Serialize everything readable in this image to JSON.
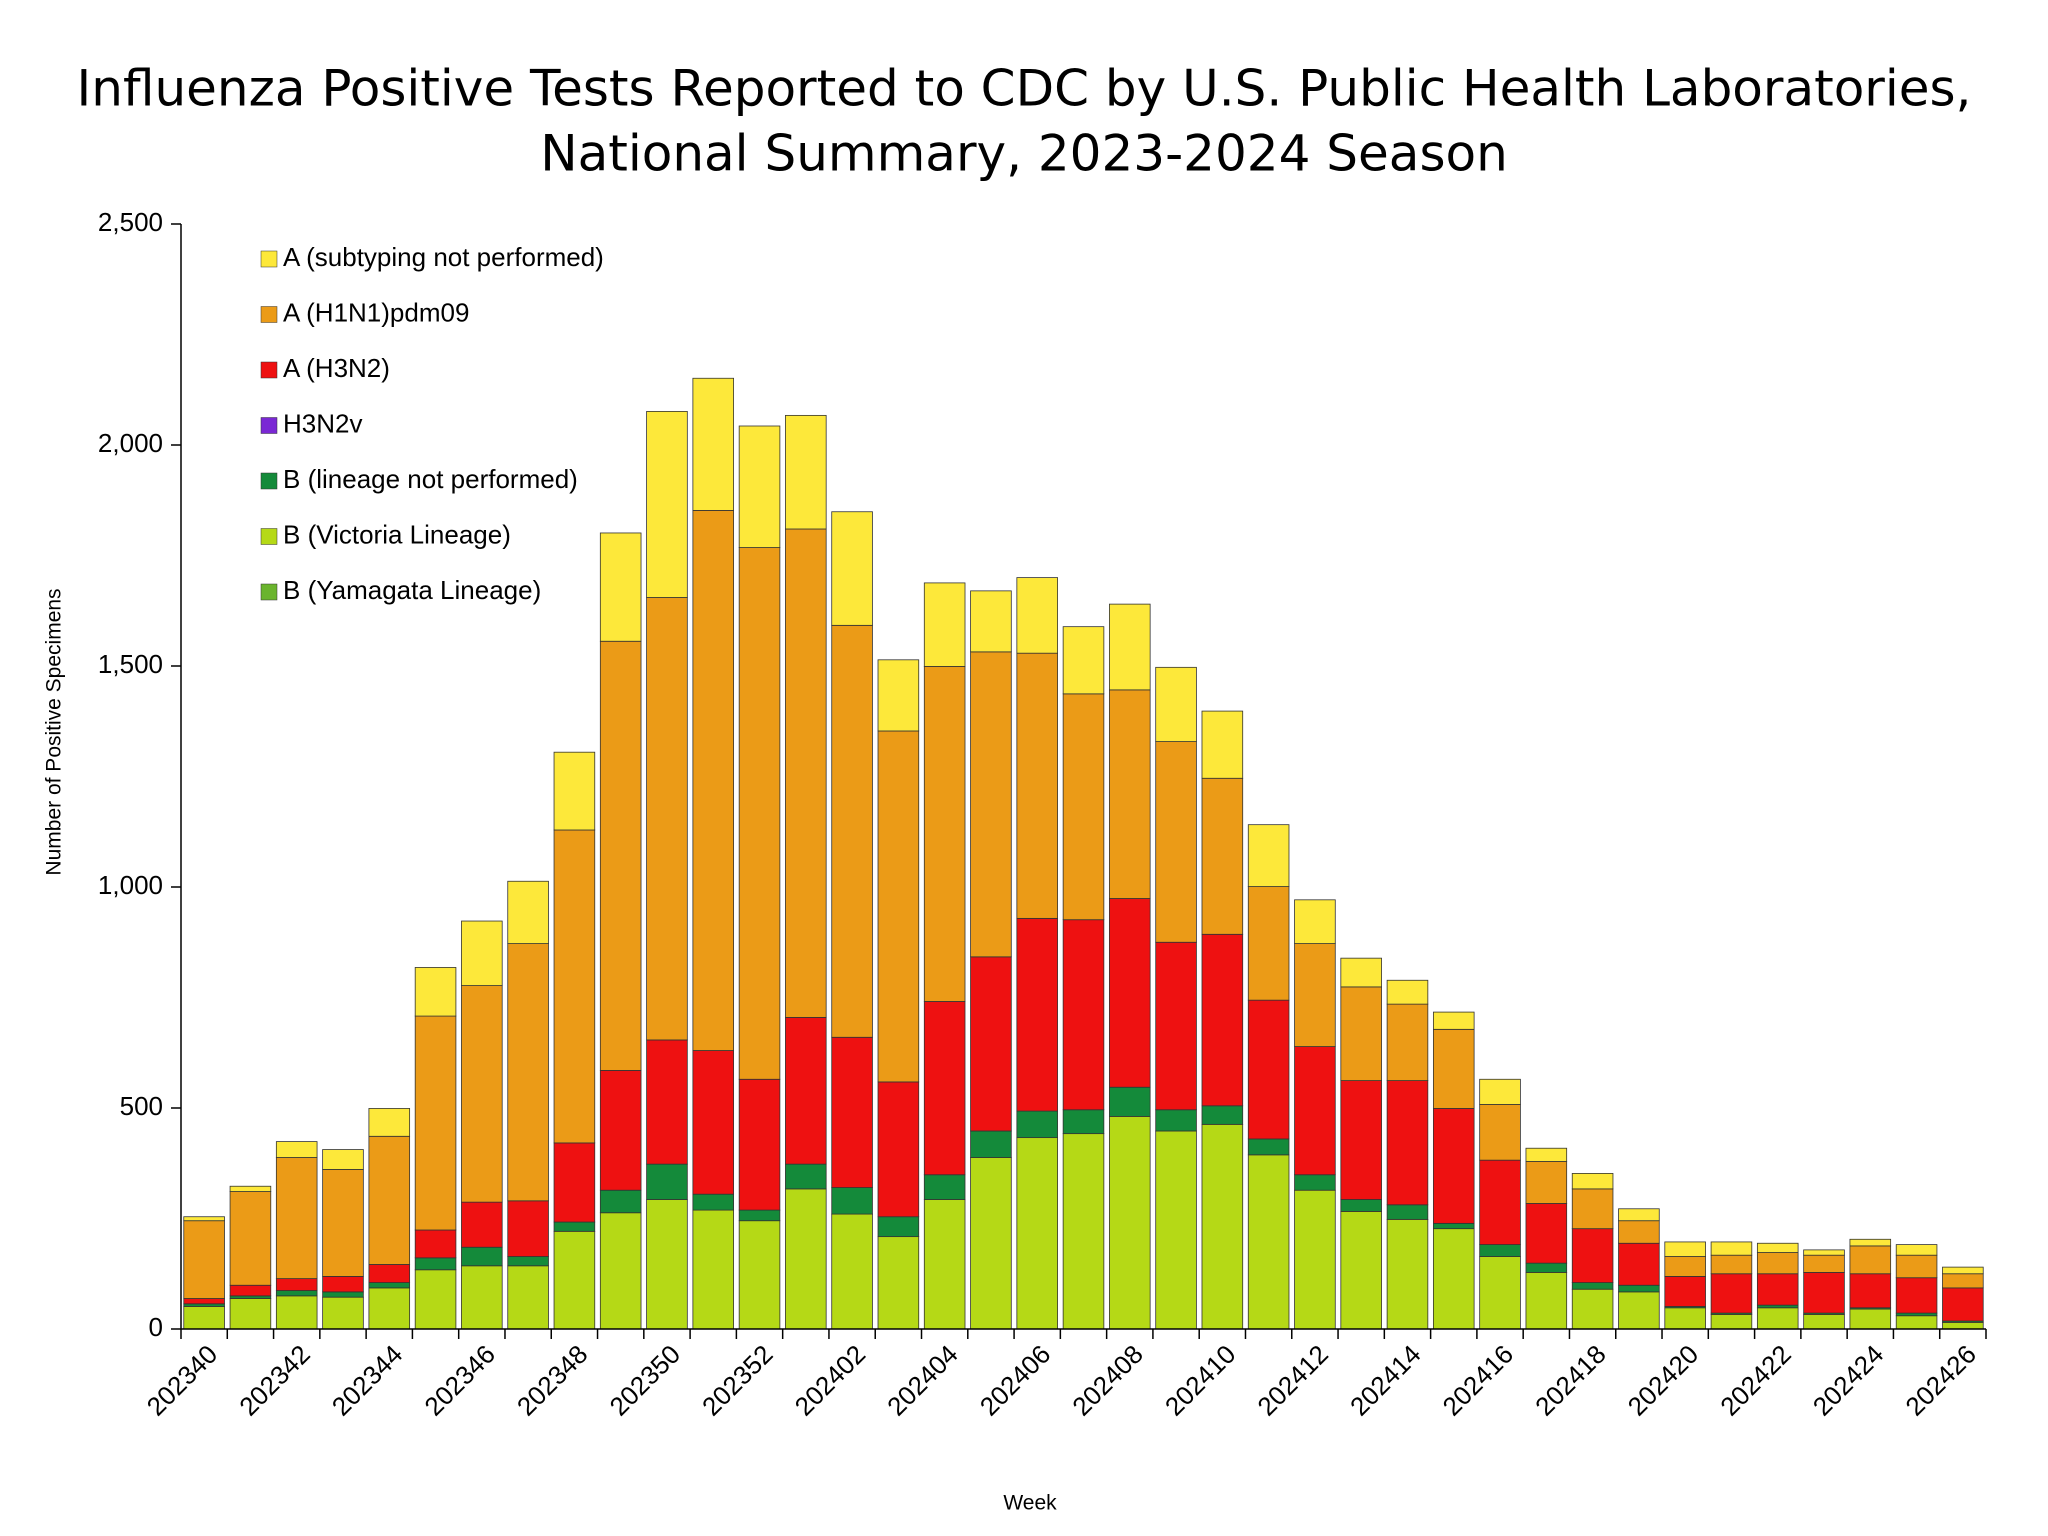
{
  "chart_data": {
    "type": "stacked_bar",
    "title": "Influenza Positive Tests Reported to CDC by U.S. Public Health Laboratories,",
    "subtitle": "National Summary, 2023-2024 Season",
    "x_label": "Week",
    "y_label": "Number of Positive Specimens",
    "categories": [
      "202340",
      null,
      "202342",
      null,
      "202344",
      null,
      "202346",
      null,
      "202348",
      null,
      "202350",
      null,
      "202352",
      null,
      "202402",
      null,
      "202404",
      null,
      "202406",
      null,
      "202408",
      null,
      "202410",
      null,
      "202412",
      null,
      "202414",
      null,
      "202416",
      null,
      "202418",
      null,
      "202420",
      null,
      "202422",
      null,
      "202424",
      null,
      "202426"
    ],
    "ylim": [
      0,
      2500
    ],
    "yticks": [
      0,
      500,
      {
        "value": 1000,
        "label": "1,000"
      },
      {
        "value": 1500,
        "label": "1,500"
      },
      {
        "value": 2000,
        "label": "2,000"
      },
      {
        "value": 2500,
        "label": "2,500"
      }
    ],
    "grid": false,
    "legend": "upper left",
    "series": [
      {
        "name": "A (subtyping not performed)",
        "color": "#fde83a",
        "values": [
          9,
          12,
          36,
          45,
          63,
          110,
          146,
          141,
          176,
          245,
          421,
          299,
          275,
          257,
          257,
          161,
          189,
          138,
          171,
          152,
          194,
          168,
          152,
          140,
          99,
          65,
          54,
          39,
          57,
          30,
          35,
          27,
          33,
          30,
          21,
          12,
          15,
          24,
          15
        ]
      },
      {
        "name": "A (H1N1)pdm09",
        "color": "#eb9b17",
        "values": [
          176,
          212,
          274,
          242,
          290,
          484,
          490,
          582,
          708,
          971,
          1001,
          1222,
          1203,
          1105,
          932,
          794,
          758,
          690,
          600,
          511,
          472,
          454,
          353,
          257,
          233,
          212,
          173,
          179,
          126,
          95,
          90,
          51,
          45,
          42,
          48,
          39,
          63,
          51,
          32
        ]
      },
      {
        "name": "A (H3N2)",
        "color": "#ee1111",
        "values": [
          12,
          24,
          27,
          35,
          41,
          63,
          102,
          126,
          179,
          271,
          281,
          325,
          296,
          332,
          340,
          305,
          392,
          394,
          436,
          430,
          427,
          379,
          388,
          314,
          290,
          269,
          281,
          260,
          191,
          135,
          122,
          95,
          68,
          89,
          71,
          92,
          77,
          80,
          75
        ]
      },
      {
        "name": "H3N2v",
        "color": "#7a28d4",
        "values": [
          0,
          0,
          0,
          0,
          0,
          0,
          0,
          0,
          0,
          0,
          0,
          0,
          0,
          0,
          0,
          0,
          0,
          0,
          0,
          0,
          0,
          0,
          0,
          0,
          0,
          0,
          0,
          0,
          0,
          0,
          0,
          0,
          0,
          0,
          0,
          0,
          0,
          0,
          0
        ]
      },
      {
        "name": "B (lineage not performed)",
        "color": "#148a3a",
        "values": [
          6,
          6,
          12,
          12,
          12,
          27,
          42,
          21,
          21,
          51,
          80,
          36,
          24,
          56,
          60,
          45,
          56,
          60,
          60,
          54,
          66,
          48,
          42,
          36,
          35,
          27,
          33,
          12,
          27,
          21,
          15,
          15,
          3,
          3,
          6,
          3,
          3,
          6,
          3
        ]
      },
      {
        "name": "B (Victoria Lineage)",
        "color": "#b5d916",
        "values": [
          51,
          69,
          75,
          72,
          93,
          134,
          143,
          143,
          221,
          263,
          293,
          269,
          245,
          317,
          260,
          209,
          293,
          388,
          433,
          442,
          481,
          448,
          463,
          394,
          314,
          266,
          248,
          227,
          164,
          128,
          90,
          84,
          48,
          33,
          48,
          33,
          45,
          30,
          15
        ]
      },
      {
        "name": "B (Yamagata Lineage)",
        "color": "#6ab42d",
        "values": [
          0,
          0,
          0,
          0,
          0,
          0,
          0,
          0,
          0,
          0,
          0,
          0,
          0,
          0,
          0,
          0,
          0,
          0,
          0,
          0,
          0,
          0,
          0,
          0,
          0,
          0,
          0,
          0,
          0,
          0,
          0,
          0,
          0,
          0,
          0,
          0,
          0,
          0,
          0
        ]
      }
    ]
  }
}
